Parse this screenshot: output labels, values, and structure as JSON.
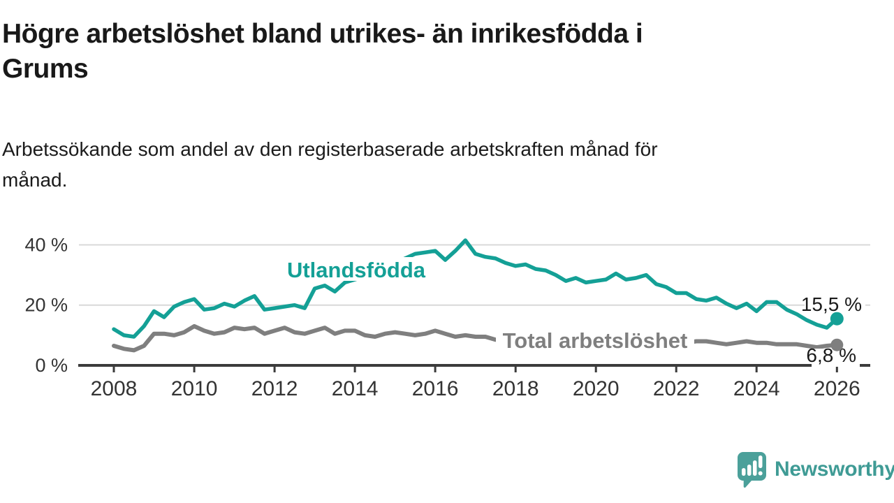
{
  "header": {
    "title_lines": [
      "Högre arbetslöshet bland utrikes- än inrikesfödda i",
      "Grums"
    ],
    "subtitle_lines": [
      "Arbetssökande som andel av den registerbaserade arbetskraften månad för",
      "månad."
    ]
  },
  "branding": {
    "logo_text": "Newsworthy",
    "logo_icon": "speech-bubble-bar-chart-icon",
    "wordmark_color": "#3F9B95",
    "icon_color": "#4BA09A"
  },
  "chart_data": {
    "type": "line",
    "title": "Högre arbetslöshet bland utrikes- än inrikesfödda i Grums",
    "subtitle": "Arbetssökande som andel av den registerbaserade arbetskraften månad för månad.",
    "xlabel": "",
    "ylabel": "",
    "grid": "horizontal gridlines at 20 % and 40 %, baseline axis at 0 %",
    "legend_position": "inline labels on lines",
    "xlim": [
      2007.13,
      2026.83
    ],
    "ylim": [
      0,
      44.75
    ],
    "x_ticks": [
      2008,
      2010,
      2012,
      2014,
      2016,
      2018,
      2020,
      2022,
      2024,
      2026
    ],
    "y_ticks_values": [
      0,
      20,
      40
    ],
    "y_ticks_labels": [
      "0 %",
      "20 %",
      "40 %"
    ],
    "x_start": 2008.0,
    "x_step": 0.25,
    "x_unit": "year (monthly published series, sampled quarterly here)",
    "unit": "% of registered labour force",
    "series": [
      {
        "name": "Utlandsfödda",
        "color": "#14A096",
        "end_value": 15.5,
        "end_label": "15,5 %",
        "values": [
          12,
          10,
          9.5,
          13,
          18,
          16,
          19.5,
          21,
          22,
          18.5,
          19,
          20.5,
          19.5,
          21.5,
          23,
          18.5,
          19,
          19.5,
          20,
          19,
          25.5,
          26.5,
          24.5,
          27.5,
          28.5,
          29.5,
          31,
          32.5,
          34,
          35.5,
          37,
          37.5,
          38,
          35,
          38,
          41.5,
          37,
          36,
          35.5,
          34,
          33,
          33.5,
          32,
          31.5,
          30,
          28,
          29,
          27.5,
          28,
          28.5,
          30.5,
          28.5,
          29,
          30,
          27,
          26,
          24,
          24,
          22,
          21.5,
          22.5,
          20.5,
          19,
          20.5,
          18,
          21,
          21,
          18.5,
          17,
          15,
          13.5,
          12.5,
          15.5
        ]
      },
      {
        "name": "Total arbetslöshet",
        "color": "#7F7F7F",
        "end_value": 6.8,
        "end_label": "6,8 %",
        "values": [
          6.5,
          5.5,
          5,
          6.5,
          10.5,
          10.5,
          10,
          11,
          13,
          11.5,
          10.5,
          11,
          12.5,
          12,
          12.5,
          10.5,
          11.5,
          12.5,
          11,
          10.5,
          11.5,
          12.5,
          10.5,
          11.5,
          11.5,
          10,
          9.5,
          10.5,
          11,
          10.5,
          10,
          10.5,
          11.5,
          10.5,
          9.5,
          10,
          9.5,
          9.5,
          8.5,
          8.5,
          8.5,
          8.5,
          8,
          8,
          8,
          7.5,
          8,
          8,
          8.5,
          9.5,
          9.5,
          9,
          9,
          8.5,
          8.5,
          8,
          8,
          7.5,
          8,
          8,
          7.5,
          7,
          7.5,
          8,
          7.5,
          7.5,
          7,
          7,
          7,
          6.5,
          6,
          6.5,
          6.8
        ]
      }
    ],
    "colors": {
      "axis": "#3B3B3B",
      "gridline": "#D8D8D8",
      "tick_text": "#333333",
      "annotation_text": "#1A1A1A"
    }
  }
}
